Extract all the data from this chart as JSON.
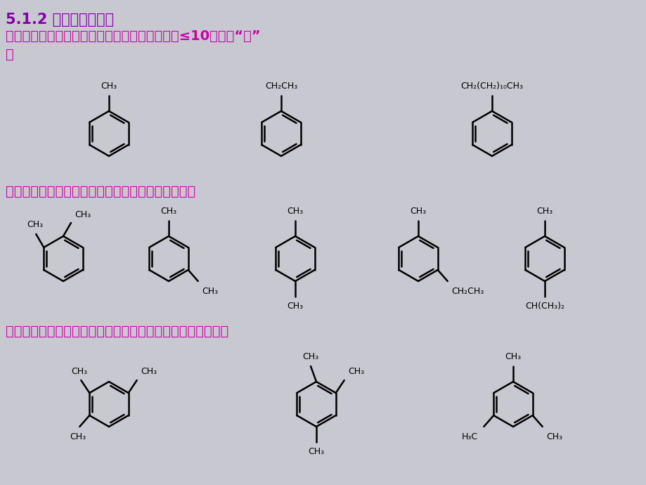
{
  "bg_color": "#c8c8d0",
  "title1": "5.1.2 单环芳烃的命名",
  "title1_color": "#8800aa",
  "line1": "一、一元取代苯，以苯为母体，烷基为取代基，≤10，省略“基”",
  "line1b": "字",
  "line2": "二、二元取代苯，用邻、间、对来表明取代基位置：",
  "line3": "三、三个相同烷基取代苯，用连、偏、均来表明取代基位置：",
  "text_color": "#cc00aa",
  "black": "#000000",
  "bond_width": 1.8
}
